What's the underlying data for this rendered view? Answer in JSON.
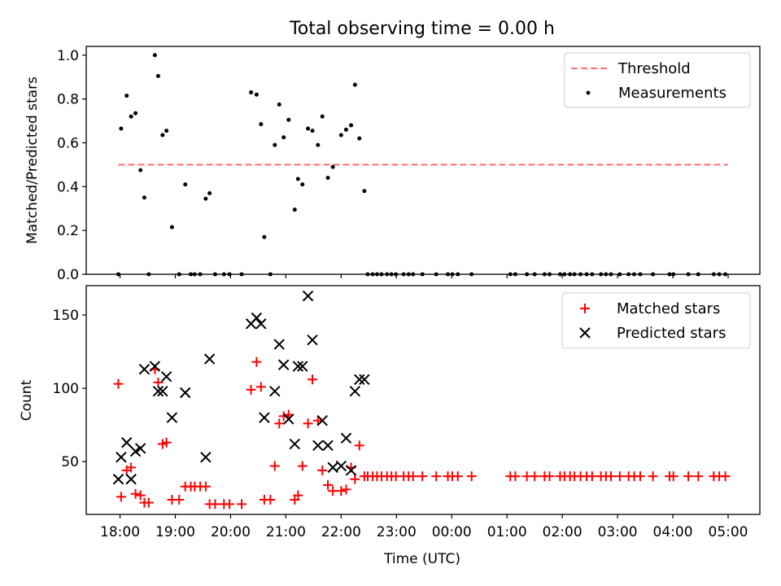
{
  "title": "Total observing time = 0.00 h",
  "chart_data": [
    {
      "type": "scatter",
      "ylabel": "Matched/Predicted stars",
      "xlim": [
        17.97,
        29.0
      ],
      "ylim": [
        0.0,
        1.04
      ],
      "yticks": [
        "0.0",
        "0.2",
        "0.4",
        "0.6",
        "0.8",
        "1.0"
      ],
      "ytick_values": [
        0.0,
        0.2,
        0.4,
        0.6,
        0.8,
        1.0
      ],
      "legend_position": "top-right",
      "threshold": {
        "name": "Threshold",
        "value": 0.5,
        "x_range": [
          17.97,
          29.0
        ],
        "color": "#ff7070",
        "style": "dashed"
      },
      "measurements": {
        "name": "Measurements",
        "color": "#000000",
        "x": [
          17.97,
          18.02,
          18.12,
          18.2,
          18.28,
          18.37,
          18.44,
          18.52,
          18.63,
          18.69,
          18.77,
          18.84,
          18.94,
          19.07,
          19.18,
          19.28,
          19.35,
          19.45,
          19.55,
          19.62,
          19.72,
          19.88,
          19.98,
          20.2,
          20.37,
          20.47,
          20.55,
          20.61,
          20.72,
          20.8,
          20.88,
          20.96,
          21.05,
          21.16,
          21.22,
          21.3,
          21.4,
          21.48,
          21.58,
          21.66,
          21.76,
          21.85,
          22.0,
          22.09,
          22.18,
          22.25,
          22.33,
          22.42
        ],
        "y": [
          0.0,
          0.665,
          0.815,
          0.72,
          0.735,
          0.475,
          0.35,
          0.0,
          1.0,
          0.905,
          0.635,
          0.655,
          0.215,
          0.0,
          0.41,
          0.0,
          0.0,
          0.0,
          0.345,
          0.37,
          0.0,
          0.0,
          0.0,
          0.0,
          0.83,
          0.82,
          0.685,
          0.17,
          0.0,
          0.59,
          0.775,
          0.625,
          0.705,
          0.295,
          0.435,
          0.41,
          0.665,
          0.655,
          0.59,
          0.72,
          0.44,
          0.49,
          0.635,
          0.66,
          0.68,
          0.865,
          0.62,
          0.38
        ]
      },
      "zeros": {
        "x": [
          22.48,
          22.57,
          22.65,
          22.73,
          22.83,
          22.91,
          22.99,
          23.13,
          23.22,
          23.3,
          23.47,
          23.72,
          23.93,
          24.01,
          24.11,
          24.36,
          25.06,
          25.15,
          25.36,
          25.5,
          25.68,
          25.77,
          25.96,
          26.04,
          26.14,
          26.22,
          26.33,
          26.44,
          26.54,
          26.7,
          26.79,
          26.88,
          27.04,
          27.2,
          27.3,
          27.41,
          27.64,
          27.94,
          28.01,
          28.28,
          28.46,
          28.74,
          28.84,
          28.95
        ]
      }
    },
    {
      "type": "scatter",
      "xlabel": "Time (UTC)",
      "ylabel": "Count",
      "xlim": [
        17.97,
        29.0
      ],
      "ylim": [
        14,
        170
      ],
      "yticks": [
        "50",
        "100",
        "150"
      ],
      "ytick_values": [
        50,
        100,
        150
      ],
      "xticks": [
        "18:00",
        "19:00",
        "20:00",
        "21:00",
        "22:00",
        "23:00",
        "00:00",
        "01:00",
        "02:00",
        "03:00",
        "04:00",
        "05:00"
      ],
      "xtick_values": [
        18,
        19,
        20,
        21,
        22,
        23,
        24,
        25,
        26,
        27,
        28,
        29
      ],
      "legend_position": "top-right",
      "series": [
        {
          "name": "Matched stars",
          "marker": "plus",
          "color": "#ff0000",
          "x": [
            17.97,
            18.02,
            18.12,
            18.2,
            18.28,
            18.37,
            18.44,
            18.52,
            18.63,
            18.69,
            18.77,
            18.84,
            18.94,
            19.07,
            19.18,
            19.28,
            19.35,
            19.45,
            19.55,
            19.62,
            19.72,
            19.88,
            19.98,
            20.2,
            20.37,
            20.47,
            20.55,
            20.61,
            20.72,
            20.8,
            20.88,
            20.96,
            21.05,
            21.16,
            21.22,
            21.3,
            21.4,
            21.48,
            21.58,
            21.66,
            21.76,
            21.85,
            22.0,
            22.09,
            22.18,
            22.25,
            22.33,
            22.42,
            22.48,
            22.57,
            22.65,
            22.73,
            22.83,
            22.91,
            22.99,
            23.13,
            23.22,
            23.3,
            23.47,
            23.72,
            23.93,
            24.01,
            24.11,
            24.36,
            25.06,
            25.15,
            25.36,
            25.5,
            25.68,
            25.77,
            25.96,
            26.04,
            26.14,
            26.22,
            26.33,
            26.44,
            26.54,
            26.7,
            26.79,
            26.88,
            27.04,
            27.2,
            27.3,
            27.41,
            27.64,
            27.94,
            28.01,
            28.28,
            28.46,
            28.74,
            28.84,
            28.95
          ],
          "y": [
            103,
            26,
            44,
            46,
            28,
            27,
            22,
            22,
            113,
            104,
            62,
            63,
            24,
            24,
            33,
            33,
            33,
            33,
            33,
            21,
            21,
            21,
            21,
            21,
            99,
            118,
            101,
            24,
            24,
            47,
            76,
            81,
            82,
            24,
            27,
            47,
            76,
            106,
            78,
            44,
            34,
            30,
            30,
            31,
            46,
            38,
            61,
            40,
            40,
            40,
            40,
            40,
            40,
            40,
            40,
            40,
            40,
            40,
            40,
            40,
            40,
            40,
            40,
            40,
            40,
            40,
            40,
            40,
            40,
            40,
            40,
            40,
            40,
            40,
            40,
            40,
            40,
            40,
            40,
            40,
            40,
            40,
            40,
            40,
            40,
            40,
            40,
            40,
            40,
            40,
            40,
            40
          ]
        },
        {
          "name": "Predicted stars",
          "marker": "x",
          "color": "#000000",
          "x": [
            17.97,
            18.02,
            18.12,
            18.2,
            18.28,
            18.37,
            18.44,
            18.63,
            18.69,
            18.77,
            18.84,
            18.94,
            19.18,
            19.55,
            19.62,
            20.37,
            20.47,
            20.55,
            20.61,
            20.8,
            20.88,
            20.96,
            21.05,
            21.16,
            21.22,
            21.3,
            21.4,
            21.48,
            21.58,
            21.66,
            21.76,
            21.85,
            22.0,
            22.09,
            22.18,
            22.25,
            22.33,
            22.42
          ],
          "y": [
            38,
            53,
            63,
            38,
            57,
            59,
            113,
            115,
            98,
            98,
            108,
            80,
            97,
            53,
            120,
            144,
            148,
            144,
            80,
            98,
            130,
            116,
            79,
            62,
            115,
            115,
            163,
            133,
            61,
            78,
            61,
            46,
            47,
            66,
            44,
            98,
            106,
            106
          ]
        }
      ]
    }
  ]
}
